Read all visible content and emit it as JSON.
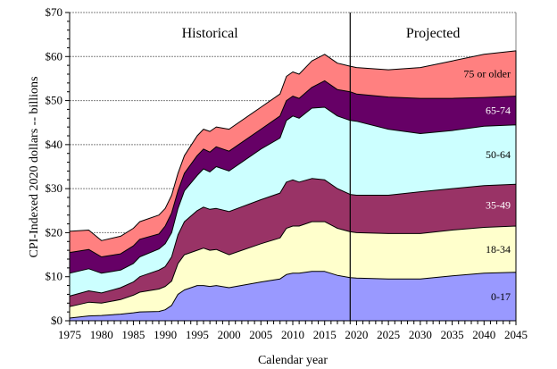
{
  "chart_data": {
    "type": "area",
    "stacked": true,
    "title": "",
    "xlabel": "Calendar year",
    "ylabel": "CPI-Indexed 2020 dollars -- billions",
    "xlim": [
      1975,
      2045
    ],
    "ylim": [
      0,
      70
    ],
    "x_ticks": [
      "1975",
      "1980",
      "1985",
      "1990",
      "1995",
      "2000",
      "2005",
      "2010",
      "2015",
      "2020",
      "2025",
      "2030",
      "2035",
      "2040",
      "2045"
    ],
    "y_ticks": [
      "$0",
      "$10",
      "$20",
      "$30",
      "$40",
      "$50",
      "$60",
      "$70"
    ],
    "grid": "horizontal dashed",
    "annotations": [
      {
        "text": "Historical",
        "x": 1997
      },
      {
        "text": "Projected",
        "x": 2032
      },
      {
        "text": "divider",
        "x": 2019
      }
    ],
    "x": [
      1975,
      1978,
      1980,
      1983,
      1985,
      1986,
      1989,
      1990,
      1991,
      1992,
      1993,
      1995,
      1996,
      1997,
      1998,
      2000,
      2005,
      2008,
      2009,
      2010,
      2011,
      2013,
      2015,
      2017,
      2019,
      2020,
      2025,
      2030,
      2035,
      2040,
      2045
    ],
    "series_note": "values are cumulative stack tops in $ billions",
    "series": [
      {
        "name": "0-17",
        "color": "#9999ff",
        "label_color": "#000000",
        "values": [
          0.6,
          1.1,
          1.2,
          1.5,
          1.8,
          2.0,
          2.1,
          2.5,
          3.5,
          6.0,
          7.0,
          8.0,
          8.0,
          7.8,
          8.0,
          7.5,
          8.8,
          9.5,
          10.5,
          10.8,
          10.8,
          11.2,
          11.2,
          10.3,
          9.8,
          9.7,
          9.5,
          9.5,
          10.2,
          10.8,
          11.0
        ]
      },
      {
        "name": "18-34",
        "color": "#ffffcc",
        "label_color": "#000000",
        "values": [
          3.2,
          4.2,
          4.0,
          4.8,
          5.8,
          6.5,
          7.2,
          7.8,
          9.0,
          13.0,
          15.0,
          16.0,
          16.5,
          16.0,
          16.2,
          15.0,
          17.5,
          18.8,
          21.0,
          21.5,
          21.5,
          22.5,
          22.5,
          21.0,
          20.2,
          20.0,
          19.8,
          19.8,
          20.6,
          21.2,
          21.5
        ]
      },
      {
        "name": "35-49",
        "color": "#993366",
        "label_color": "#ffffff",
        "values": [
          5.6,
          6.8,
          6.3,
          7.5,
          8.8,
          10.0,
          11.5,
          12.3,
          14.5,
          19.5,
          22.5,
          25.0,
          25.8,
          25.3,
          25.5,
          24.8,
          27.5,
          29.0,
          31.5,
          32.0,
          31.5,
          32.3,
          32.0,
          30.0,
          28.7,
          28.5,
          28.5,
          29.3,
          30.0,
          30.7,
          31.0
        ]
      },
      {
        "name": "50-64",
        "color": "#ccffff",
        "label_color": "#000000",
        "values": [
          10.8,
          11.8,
          10.8,
          11.5,
          13.0,
          14.5,
          16.3,
          17.5,
          20.0,
          25.5,
          29.5,
          33.0,
          34.5,
          33.8,
          35.0,
          34.0,
          39.0,
          41.5,
          45.5,
          46.5,
          46.0,
          48.3,
          48.5,
          46.5,
          45.5,
          45.3,
          43.5,
          42.5,
          43.2,
          44.2,
          44.5
        ]
      },
      {
        "name": "65-74",
        "color": "#660066",
        "label_color": "#ffffff",
        "values": [
          15.5,
          16.2,
          14.5,
          15.2,
          17.0,
          18.5,
          19.7,
          21.5,
          24.5,
          29.5,
          33.5,
          37.5,
          39.0,
          38.3,
          39.5,
          38.5,
          43.5,
          46.5,
          50.0,
          51.0,
          50.5,
          53.0,
          54.5,
          52.5,
          52.0,
          51.5,
          50.8,
          50.5,
          50.5,
          50.7,
          51.0
        ]
      },
      {
        "name": "75 or older",
        "color": "#ff8080",
        "label_color": "#000000",
        "values": [
          20.3,
          20.6,
          18.2,
          19.2,
          21.0,
          22.5,
          24.0,
          25.5,
          28.5,
          33.5,
          37.5,
          42.0,
          43.5,
          43.0,
          44.0,
          43.5,
          48.5,
          51.5,
          55.5,
          56.5,
          56.0,
          59.0,
          60.5,
          58.5,
          57.8,
          57.5,
          57.0,
          57.5,
          59.0,
          60.5,
          61.3
        ]
      }
    ]
  }
}
